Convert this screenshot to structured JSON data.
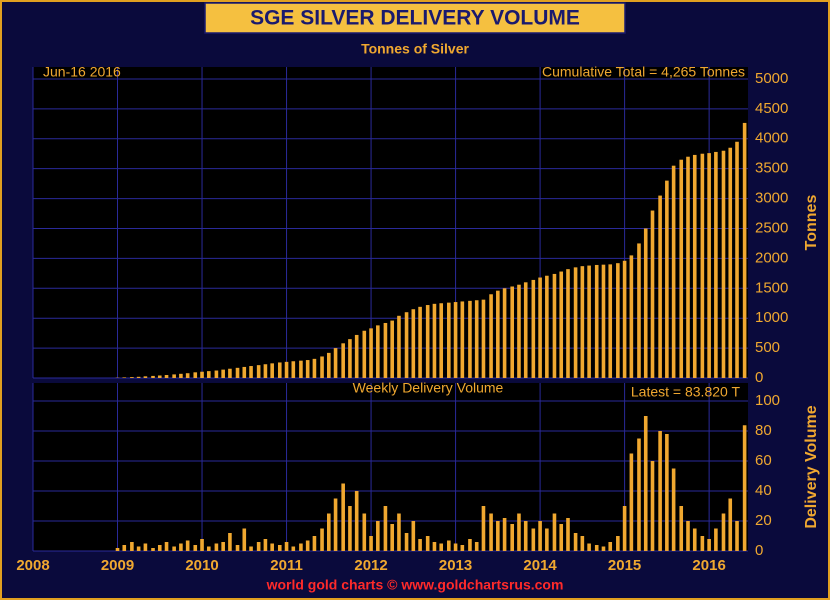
{
  "title": "SGE SILVER DELIVERY VOLUME",
  "footer": "world gold charts © www.goldchartsrus.com",
  "chart_data": [
    {
      "type": "bar",
      "subtitle": "Tonnes of Silver",
      "date_label": "Jun-16  2016",
      "annotation": "Cumulative Total = 4,265 Tonnes",
      "ylabel": "Tonnes",
      "color": "#f0a830",
      "x": [
        2009.0,
        2009.08,
        2009.17,
        2009.25,
        2009.33,
        2009.42,
        2009.5,
        2009.58,
        2009.67,
        2009.75,
        2009.83,
        2009.92,
        2010.0,
        2010.08,
        2010.17,
        2010.25,
        2010.33,
        2010.42,
        2010.5,
        2010.58,
        2010.67,
        2010.75,
        2010.83,
        2010.92,
        2011.0,
        2011.08,
        2011.17,
        2011.25,
        2011.33,
        2011.42,
        2011.5,
        2011.58,
        2011.67,
        2011.75,
        2011.83,
        2011.92,
        2012.0,
        2012.08,
        2012.17,
        2012.25,
        2012.33,
        2012.42,
        2012.5,
        2012.58,
        2012.67,
        2012.75,
        2012.83,
        2012.92,
        2013.0,
        2013.08,
        2013.17,
        2013.25,
        2013.33,
        2013.42,
        2013.5,
        2013.58,
        2013.67,
        2013.75,
        2013.83,
        2013.92,
        2014.0,
        2014.08,
        2014.17,
        2014.25,
        2014.33,
        2014.42,
        2014.5,
        2014.58,
        2014.67,
        2014.75,
        2014.83,
        2014.92,
        2015.0,
        2015.08,
        2015.17,
        2015.25,
        2015.33,
        2015.42,
        2015.5,
        2015.58,
        2015.67,
        2015.75,
        2015.83,
        2015.92,
        2016.0,
        2016.08,
        2016.17,
        2016.25,
        2016.33,
        2016.42
      ],
      "values": [
        5,
        10,
        15,
        20,
        28,
        35,
        42,
        50,
        60,
        70,
        80,
        95,
        105,
        115,
        125,
        140,
        155,
        170,
        185,
        200,
        215,
        230,
        245,
        260,
        270,
        280,
        290,
        300,
        320,
        360,
        420,
        500,
        580,
        650,
        720,
        790,
        830,
        880,
        920,
        960,
        1040,
        1100,
        1150,
        1190,
        1220,
        1240,
        1250,
        1260,
        1270,
        1280,
        1290,
        1300,
        1310,
        1400,
        1460,
        1500,
        1530,
        1560,
        1600,
        1640,
        1680,
        1710,
        1740,
        1780,
        1820,
        1850,
        1870,
        1880,
        1890,
        1895,
        1900,
        1920,
        1960,
        2050,
        2250,
        2500,
        2800,
        3050,
        3300,
        3550,
        3650,
        3700,
        3730,
        3750,
        3760,
        3780,
        3800,
        3850,
        3950,
        4265
      ],
      "xlim": [
        2008,
        2016.46
      ],
      "xticks": [
        2008,
        2009,
        2010,
        2011,
        2012,
        2013,
        2014,
        2015,
        2016
      ],
      "ylim": [
        0,
        5200
      ],
      "yticks": [
        0,
        500,
        1000,
        1500,
        2000,
        2500,
        3000,
        3500,
        4000,
        4500,
        5000
      ],
      "grid": true
    },
    {
      "type": "bar",
      "annotation": "Weekly Delivery Volume",
      "latest_label": "Latest = 83.820 T",
      "ylabel": "Delivery Volume",
      "color": "#f0a830",
      "x": [
        2009.0,
        2009.08,
        2009.17,
        2009.25,
        2009.33,
        2009.42,
        2009.5,
        2009.58,
        2009.67,
        2009.75,
        2009.83,
        2009.92,
        2010.0,
        2010.08,
        2010.17,
        2010.25,
        2010.33,
        2010.42,
        2010.5,
        2010.58,
        2010.67,
        2010.75,
        2010.83,
        2010.92,
        2011.0,
        2011.08,
        2011.17,
        2011.25,
        2011.33,
        2011.42,
        2011.5,
        2011.58,
        2011.67,
        2011.75,
        2011.83,
        2011.92,
        2012.0,
        2012.08,
        2012.17,
        2012.25,
        2012.33,
        2012.42,
        2012.5,
        2012.58,
        2012.67,
        2012.75,
        2012.83,
        2012.92,
        2013.0,
        2013.08,
        2013.17,
        2013.25,
        2013.33,
        2013.42,
        2013.5,
        2013.58,
        2013.67,
        2013.75,
        2013.83,
        2013.92,
        2014.0,
        2014.08,
        2014.17,
        2014.25,
        2014.33,
        2014.42,
        2014.5,
        2014.58,
        2014.67,
        2014.75,
        2014.83,
        2014.92,
        2015.0,
        2015.08,
        2015.17,
        2015.25,
        2015.33,
        2015.42,
        2015.5,
        2015.58,
        2015.67,
        2015.75,
        2015.83,
        2015.92,
        2016.0,
        2016.08,
        2016.17,
        2016.25,
        2016.33,
        2016.42
      ],
      "values": [
        2,
        4,
        6,
        3,
        5,
        2,
        4,
        6,
        3,
        5,
        7,
        4,
        8,
        3,
        5,
        6,
        12,
        4,
        15,
        3,
        6,
        8,
        5,
        4,
        6,
        3,
        5,
        7,
        10,
        15,
        25,
        35,
        45,
        30,
        40,
        25,
        10,
        20,
        30,
        18,
        25,
        12,
        20,
        8,
        10,
        6,
        5,
        7,
        5,
        4,
        8,
        6,
        30,
        25,
        20,
        22,
        18,
        25,
        20,
        15,
        20,
        15,
        25,
        18,
        22,
        12,
        10,
        5,
        4,
        3,
        6,
        10,
        30,
        65,
        75,
        90,
        60,
        80,
        78,
        55,
        30,
        20,
        15,
        10,
        8,
        15,
        25,
        35,
        20,
        83.82
      ],
      "xlim": [
        2008,
        2016.46
      ],
      "xticks": [
        2008,
        2009,
        2010,
        2011,
        2012,
        2013,
        2014,
        2015,
        2016
      ],
      "ylim": [
        0,
        112
      ],
      "yticks": [
        0,
        20,
        40,
        60,
        80,
        100
      ],
      "grid": true
    }
  ]
}
